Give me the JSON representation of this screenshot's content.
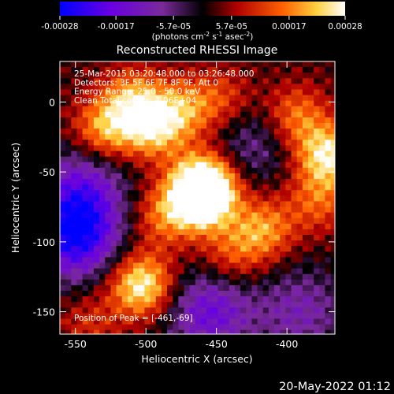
{
  "chart_data": {
    "type": "heatmap",
    "title": "Reconstructed RHESSI Image",
    "xlabel": "Heliocentric X (arcsec)",
    "ylabel": "Heliocentric Y (arcsec)",
    "xlim": [
      -561,
      -366
    ],
    "ylim": [
      -166,
      29
    ],
    "xticks": [
      -550,
      -500,
      -450,
      -400
    ],
    "yticks": [
      0,
      -50,
      -100,
      -150
    ],
    "colorbar": {
      "ticks": [
        "-0.00028",
        "-0.00017",
        "-5.7e-05",
        "5.7e-05",
        "0.00017",
        "0.00028"
      ],
      "range": [
        -0.00028,
        0.00028
      ],
      "unit_prefix": "(photons cm",
      "unit_sup1": "-2",
      "unit_mid1": " s",
      "unit_sup2": "-1",
      "unit_mid2": " asec",
      "unit_sup3": "-2",
      "unit_suffix": ")"
    },
    "annotations": [
      "25-Mar-2015 03:20:48.000 to 03:26:48.000",
      "Detectors: 3F 5F 6F 7F 8F 9F, Att 0",
      "Energy Range: 25.0 - 50.0 keV",
      "Clean     Total counts: 1.06E+04"
    ],
    "peak_label": "Position of Peak = [-461,-69]",
    "sources": [
      {
        "x": -461,
        "y": -69,
        "value": 0.00028
      },
      {
        "x": -458,
        "y": -58,
        "value": 0.00025
      },
      {
        "x": -495,
        "y": -18,
        "value": 0.00021
      },
      {
        "x": -510,
        "y": 2,
        "value": 0.00016
      },
      {
        "x": -530,
        "y": -20,
        "value": 0.00018
      },
      {
        "x": -503,
        "y": -131,
        "value": 0.00026
      },
      {
        "x": -417,
        "y": -91,
        "value": 0.00017
      },
      {
        "x": -371,
        "y": -38,
        "value": 0.00024
      },
      {
        "x": -394,
        "y": -10,
        "value": 0.00015
      },
      {
        "x": -378,
        "y": -71,
        "value": 0.00012
      },
      {
        "x": -472,
        "y": -5,
        "value": 0.00014
      },
      {
        "x": -488,
        "y": -82,
        "value": 0.00013
      },
      {
        "x": -440,
        "y": -110,
        "value": 0.00011
      },
      {
        "x": -445,
        "y": 2,
        "value": 0.0001
      },
      {
        "x": -540,
        "y": -158,
        "value": 8e-05
      }
    ],
    "negative_regions": [
      {
        "x": -550,
        "y": -95,
        "value": -0.00028
      },
      {
        "x": -545,
        "y": -60,
        "value": -0.00015
      },
      {
        "x": -455,
        "y": -150,
        "value": -0.00018
      },
      {
        "x": -390,
        "y": -150,
        "value": -0.00012
      },
      {
        "x": -425,
        "y": -30,
        "value": -0.0001
      }
    ]
  },
  "footer": {
    "date": "20-May-2022 01:12"
  }
}
